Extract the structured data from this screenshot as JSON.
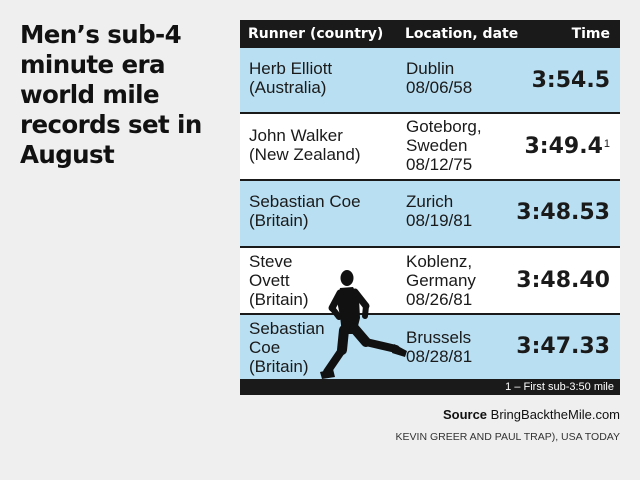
{
  "headline": "Men’s sub-4 minute era world mile records set in August",
  "table": {
    "headers": {
      "runner": "Runner (country)",
      "location": "Location, date",
      "time": "Time"
    },
    "rows": [
      {
        "runner": "Herb Elliott\n(Australia)",
        "location": "Dublin\n08/06/58",
        "time": "3:54.5",
        "note": ""
      },
      {
        "runner": "John Walker\n(New Zealand)",
        "location": "Goteborg,\nSweden\n08/12/75",
        "time": "3:49.4",
        "note": "1"
      },
      {
        "runner": "Sebastian Coe\n(Britain)",
        "location": "Zurich\n08/19/81",
        "time": "3:48.53",
        "note": ""
      },
      {
        "runner": "Steve\nOvett\n(Britain)",
        "location": "Koblenz,\nGermany\n08/26/81",
        "time": "3:48.40",
        "note": ""
      },
      {
        "runner": "Sebastian\nCoe\n(Britain)",
        "location": "Brussels\n08/28/81",
        "time": "3:47.33",
        "note": ""
      }
    ],
    "footnote": "1 – First sub-3:50 mile"
  },
  "source": {
    "label": "Source",
    "text": "BringBacktheMile.com"
  },
  "credit": "KEVIN GREER AND PAUL TRAP), USA TODAY",
  "colors": {
    "row_blue": "#b9dff2",
    "row_white": "#ffffff",
    "header_bg": "#1a1a1a",
    "page_bg": "#efefef"
  },
  "icons": {
    "illustration": "runner-silhouette-icon"
  }
}
